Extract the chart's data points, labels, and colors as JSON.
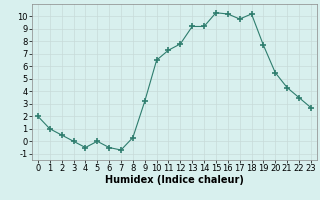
{
  "x": [
    0,
    1,
    2,
    3,
    4,
    5,
    6,
    7,
    8,
    9,
    10,
    11,
    12,
    13,
    14,
    15,
    16,
    17,
    18,
    19,
    20,
    21,
    22,
    23
  ],
  "y": [
    2,
    1,
    0.5,
    0,
    -0.5,
    0,
    -0.5,
    -0.7,
    0.3,
    3.2,
    6.5,
    7.3,
    7.8,
    9.2,
    9.2,
    10.3,
    10.2,
    9.8,
    10.2,
    7.7,
    5.5,
    4.3,
    3.5,
    2.7
  ],
  "xlabel": "Humidex (Indice chaleur)",
  "xlim": [
    -0.5,
    23.5
  ],
  "ylim": [
    -1.5,
    11
  ],
  "yticks": [
    -1,
    0,
    1,
    2,
    3,
    4,
    5,
    6,
    7,
    8,
    9,
    10
  ],
  "xticks": [
    0,
    1,
    2,
    3,
    4,
    5,
    6,
    7,
    8,
    9,
    10,
    11,
    12,
    13,
    14,
    15,
    16,
    17,
    18,
    19,
    20,
    21,
    22,
    23
  ],
  "line_color": "#2e7d6e",
  "marker": "+",
  "marker_size": 4,
  "bg_color": "#d8f0ee",
  "grid_color": "#c8dbd9",
  "label_fontsize": 7,
  "tick_fontsize": 6
}
